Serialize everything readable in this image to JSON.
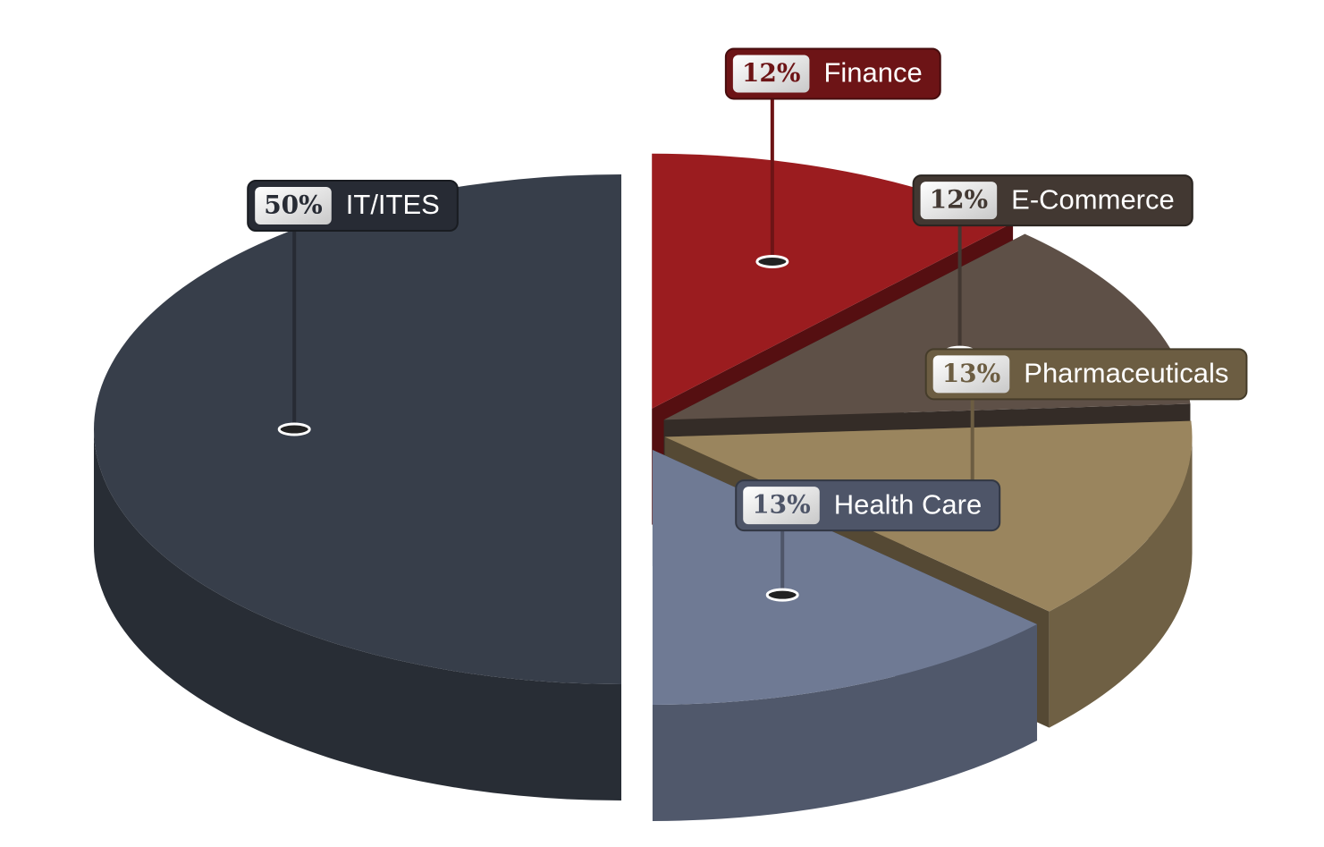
{
  "chart_data": {
    "type": "pie",
    "categories": [
      "Finance",
      "E-Commerce",
      "Pharmaceuticals",
      "Health Care",
      "IT/ITES"
    ],
    "values": [
      12,
      12,
      13,
      13,
      50
    ],
    "value_labels": [
      "12%",
      "12%",
      "13%",
      "13%",
      "50%"
    ],
    "colors": [
      "#9b1c1f",
      "#5e5047",
      "#9a855e",
      "#6f7a94",
      "#373e4a"
    ]
  }
}
